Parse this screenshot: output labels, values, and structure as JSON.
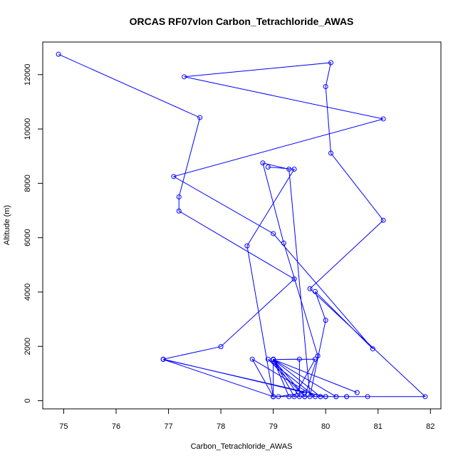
{
  "chart_data": {
    "type": "line",
    "title": "ORCAS RF07vlon Carbon_Tetrachloride_AWAS",
    "xlabel": "Carbon_Tetrachloride_AWAS",
    "ylabel": "Altitude (m)",
    "xlim": [
      74.6,
      82.2
    ],
    "ylim": [
      -300,
      13200
    ],
    "x_ticks": [
      75,
      76,
      77,
      78,
      79,
      80,
      81,
      82
    ],
    "y_ticks": [
      0,
      2000,
      4000,
      6000,
      8000,
      10000,
      12000
    ],
    "grid": false,
    "legend": "none",
    "series_color": "#0000ff",
    "marker": "open-circle",
    "series": [
      {
        "points": [
          [
            74.9,
            12750
          ],
          [
            77.6,
            10420
          ],
          [
            77.2,
            7500
          ],
          [
            77.2,
            6980
          ],
          [
            79.4,
            4480
          ],
          [
            78.0,
            1990
          ],
          [
            76.9,
            1530
          ],
          [
            79.6,
            300
          ],
          [
            79.1,
            150
          ],
          [
            80.4,
            150
          ],
          [
            79.0,
            150
          ],
          [
            79.0,
            1520
          ],
          [
            79.9,
            150
          ],
          [
            79.0,
            1520
          ],
          [
            80.2,
            150
          ],
          [
            79.0,
            1520
          ],
          [
            80.6,
            300
          ],
          [
            79.0,
            1520
          ],
          [
            79.8,
            1530
          ],
          [
            79.4,
            150
          ],
          [
            79.0,
            1520
          ],
          [
            79.5,
            1530
          ],
          [
            79.5,
            150
          ],
          [
            79.0,
            1520
          ],
          [
            79.3,
            150
          ],
          [
            79.0,
            1530
          ],
          [
            79.6,
            150
          ],
          [
            78.9,
            1530
          ],
          [
            79.8,
            150
          ],
          [
            78.6,
            1530
          ],
          [
            79.0,
            150
          ],
          [
            76.9,
            1520
          ],
          [
            80.0,
            150
          ],
          [
            80.8,
            150
          ],
          [
            81.9,
            150
          ],
          [
            79.7,
            4120
          ],
          [
            81.1,
            6640
          ],
          [
            80.1,
            9110
          ],
          [
            80.0,
            11560
          ],
          [
            80.1,
            12440
          ],
          [
            77.3,
            11920
          ],
          [
            81.1,
            10370
          ],
          [
            77.1,
            8250
          ],
          [
            79.0,
            6150
          ],
          [
            80.9,
            1910
          ],
          [
            79.8,
            4020
          ],
          [
            80.0,
            2960
          ],
          [
            79.7,
            150
          ],
          [
            79.3,
            8520
          ],
          [
            78.8,
            8750
          ],
          [
            79.2,
            5800
          ],
          [
            79.85,
            1650
          ],
          [
            79.6,
            150
          ],
          [
            79.9,
            150
          ],
          [
            80.0,
            150
          ],
          [
            80.2,
            150
          ],
          [
            80.4,
            150
          ],
          [
            79.0,
            150
          ],
          [
            79.0,
            150
          ],
          [
            78.5,
            5700
          ],
          [
            79.4,
            8520
          ],
          [
            78.9,
            8600
          ]
        ]
      }
    ]
  }
}
